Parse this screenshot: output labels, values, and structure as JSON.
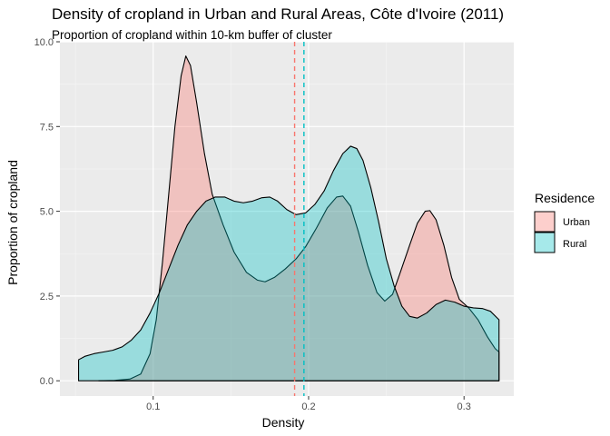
{
  "chart_data": {
    "type": "area",
    "title": "Density of cropland in Urban and Rural Areas, Côte d'Ivoire (2011)",
    "subtitle": "Proportion of cropland within 10-km buffer of cluster",
    "xlabel": "Density",
    "ylabel": "Proportion of cropland",
    "xlim": [
      0.04,
      0.332
    ],
    "ylim": [
      -0.45,
      10.0
    ],
    "x_ticks": [
      {
        "value": 0.1,
        "label": "0.1"
      },
      {
        "value": 0.2,
        "label": "0.2"
      },
      {
        "value": 0.3,
        "label": "0.3"
      }
    ],
    "y_ticks": [
      {
        "value": 0.0,
        "label": "0.0"
      },
      {
        "value": 2.5,
        "label": "2.5"
      },
      {
        "value": 5.0,
        "label": "5.0"
      },
      {
        "value": 7.5,
        "label": "7.5"
      },
      {
        "value": 10.0,
        "label": "10.0"
      }
    ],
    "grid": true,
    "legend": {
      "title": "Residence",
      "position": "right"
    },
    "series": [
      {
        "name": "Urban",
        "color": "#F8766D",
        "mean": 0.191,
        "points": [
          [
            0.065,
            0.0
          ],
          [
            0.075,
            0.01
          ],
          [
            0.085,
            0.05
          ],
          [
            0.092,
            0.2
          ],
          [
            0.098,
            0.8
          ],
          [
            0.102,
            1.8
          ],
          [
            0.106,
            3.5
          ],
          [
            0.11,
            5.5
          ],
          [
            0.114,
            7.5
          ],
          [
            0.118,
            9.0
          ],
          [
            0.121,
            9.58
          ],
          [
            0.124,
            9.3
          ],
          [
            0.128,
            8.2
          ],
          [
            0.133,
            6.7
          ],
          [
            0.138,
            5.5
          ],
          [
            0.145,
            4.6
          ],
          [
            0.152,
            3.8
          ],
          [
            0.16,
            3.2
          ],
          [
            0.167,
            2.97
          ],
          [
            0.172,
            2.92
          ],
          [
            0.178,
            3.05
          ],
          [
            0.185,
            3.3
          ],
          [
            0.192,
            3.6
          ],
          [
            0.198,
            3.95
          ],
          [
            0.205,
            4.5
          ],
          [
            0.212,
            5.1
          ],
          [
            0.218,
            5.42
          ],
          [
            0.222,
            5.45
          ],
          [
            0.227,
            5.15
          ],
          [
            0.232,
            4.4
          ],
          [
            0.238,
            3.4
          ],
          [
            0.244,
            2.6
          ],
          [
            0.249,
            2.35
          ],
          [
            0.254,
            2.55
          ],
          [
            0.259,
            3.2
          ],
          [
            0.265,
            4.0
          ],
          [
            0.27,
            4.65
          ],
          [
            0.275,
            5.0
          ],
          [
            0.278,
            5.02
          ],
          [
            0.282,
            4.75
          ],
          [
            0.287,
            4.0
          ],
          [
            0.292,
            3.05
          ],
          [
            0.297,
            2.4
          ],
          [
            0.303,
            2.15
          ],
          [
            0.309,
            1.8
          ],
          [
            0.315,
            1.3
          ],
          [
            0.32,
            0.95
          ],
          [
            0.3225,
            0.85
          ]
        ]
      },
      {
        "name": "Rural",
        "color": "#00BFC4",
        "mean": 0.197,
        "points": [
          [
            0.052,
            0.62
          ],
          [
            0.056,
            0.72
          ],
          [
            0.062,
            0.8
          ],
          [
            0.068,
            0.85
          ],
          [
            0.074,
            0.9
          ],
          [
            0.08,
            1.0
          ],
          [
            0.086,
            1.2
          ],
          [
            0.092,
            1.5
          ],
          [
            0.098,
            2.0
          ],
          [
            0.104,
            2.6
          ],
          [
            0.11,
            3.3
          ],
          [
            0.116,
            4.0
          ],
          [
            0.122,
            4.6
          ],
          [
            0.128,
            5.0
          ],
          [
            0.134,
            5.3
          ],
          [
            0.14,
            5.42
          ],
          [
            0.146,
            5.42
          ],
          [
            0.152,
            5.3
          ],
          [
            0.158,
            5.25
          ],
          [
            0.164,
            5.3
          ],
          [
            0.17,
            5.4
          ],
          [
            0.175,
            5.42
          ],
          [
            0.18,
            5.3
          ],
          [
            0.186,
            5.05
          ],
          [
            0.192,
            4.9
          ],
          [
            0.198,
            4.95
          ],
          [
            0.204,
            5.2
          ],
          [
            0.21,
            5.6
          ],
          [
            0.216,
            6.2
          ],
          [
            0.222,
            6.7
          ],
          [
            0.227,
            6.92
          ],
          [
            0.231,
            6.85
          ],
          [
            0.235,
            6.5
          ],
          [
            0.24,
            5.7
          ],
          [
            0.245,
            4.7
          ],
          [
            0.25,
            3.6
          ],
          [
            0.255,
            2.8
          ],
          [
            0.26,
            2.2
          ],
          [
            0.265,
            1.9
          ],
          [
            0.27,
            1.85
          ],
          [
            0.276,
            2.0
          ],
          [
            0.282,
            2.25
          ],
          [
            0.288,
            2.38
          ],
          [
            0.294,
            2.32
          ],
          [
            0.3,
            2.2
          ],
          [
            0.306,
            2.15
          ],
          [
            0.312,
            2.13
          ],
          [
            0.317,
            2.05
          ],
          [
            0.3225,
            1.8
          ]
        ]
      }
    ]
  },
  "colors": {
    "panel_background": "#EBEBEB",
    "grid_major": "#FFFFFF",
    "grid_minor": "#F5F5F5",
    "outline": "#000000",
    "tick": "#333333"
  }
}
